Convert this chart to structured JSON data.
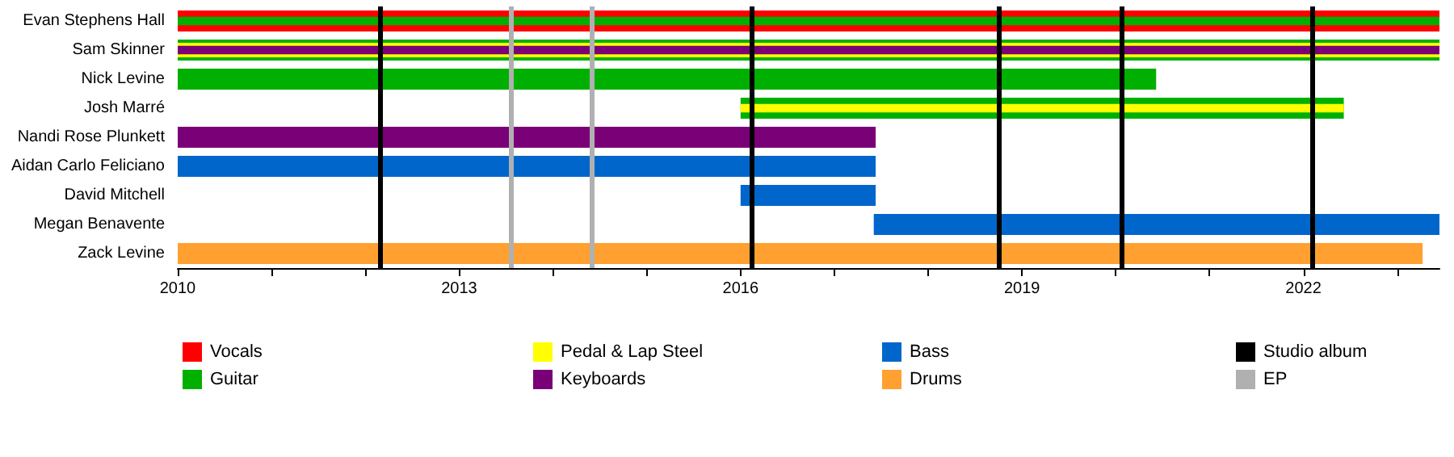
{
  "chart_data": {
    "type": "bar",
    "orientation": "horizontal",
    "legend": "bottom",
    "categories": [
      "Evan Stephens Hall",
      "Sam Skinner",
      "Nick Levine",
      "Josh Marré",
      "Nandi Rose Plunkett",
      "Aidan Carlo Feliciano",
      "David Mitchell",
      "Megan Benavente",
      "Zack Levine"
    ],
    "series": [
      {
        "name": "Vocals",
        "color": "#ff0000",
        "base": [
          2010,
          null,
          null,
          null,
          null,
          null,
          null,
          null,
          null
        ],
        "values": [
          13.45,
          null,
          null,
          null,
          null,
          null,
          null,
          null,
          null
        ]
      },
      {
        "name": "Guitar",
        "color": "#00b000",
        "base": [
          2010,
          2010,
          2010,
          2016.0,
          null,
          null,
          null,
          null,
          null
        ],
        "values": [
          13.45,
          13.45,
          10.43,
          6.43,
          null,
          null,
          null,
          null,
          null
        ]
      },
      {
        "name": "Pedal & Lap Steel",
        "color": "#ffff00",
        "base": [
          null,
          2010,
          null,
          2016.0,
          null,
          null,
          null,
          null,
          null
        ],
        "values": [
          null,
          13.45,
          null,
          6.43,
          null,
          null,
          null,
          null,
          null
        ]
      },
      {
        "name": "Keyboards",
        "color": "#7a0078",
        "base": [
          null,
          2010,
          null,
          null,
          2010,
          null,
          null,
          null,
          null
        ],
        "values": [
          null,
          13.45,
          null,
          null,
          7.44,
          null,
          null,
          null,
          null
        ]
      },
      {
        "name": "Bass",
        "color": "#0066cc",
        "base": [
          null,
          null,
          null,
          null,
          null,
          2010,
          2016.0,
          2017.42,
          null
        ],
        "values": [
          null,
          null,
          null,
          null,
          null,
          7.44,
          1.44,
          6.03,
          null
        ]
      },
      {
        "name": "Drums",
        "color": "#ffa030",
        "base": [
          null,
          null,
          null,
          null,
          null,
          null,
          null,
          null,
          2010
        ],
        "values": [
          null,
          null,
          null,
          null,
          null,
          null,
          null,
          null,
          13.27
        ]
      }
    ],
    "xlim": [
      2010,
      2023.45
    ],
    "xticks": [
      2010,
      {
        "value": 2011,
        "label": null
      },
      {
        "value": 2012,
        "label": null
      },
      2013,
      {
        "value": 2014,
        "label": null
      },
      {
        "value": 2015,
        "label": null
      },
      2016,
      {
        "value": 2017,
        "label": null
      },
      {
        "value": 2018,
        "label": null
      },
      2019,
      {
        "value": 2020,
        "label": null
      },
      {
        "value": 2021,
        "label": null
      },
      2022,
      {
        "value": 2023,
        "label": null
      }
    ],
    "ref_lines": [
      {
        "axis": "x",
        "value": 2012.15,
        "label": "Studio album",
        "color": "#000000"
      },
      {
        "axis": "x",
        "value": 2016.11,
        "color": "#000000"
      },
      {
        "axis": "x",
        "value": 2018.75,
        "color": "#000000"
      },
      {
        "axis": "x",
        "value": 2020.06,
        "color": "#000000"
      },
      {
        "axis": "x",
        "value": 2022.09,
        "color": "#000000"
      },
      {
        "axis": "x",
        "value": 2013.56,
        "label": "EP",
        "color": "#b0b0b0"
      },
      {
        "axis": "x",
        "value": 2014.41,
        "color": "#b0b0b0"
      }
    ]
  }
}
